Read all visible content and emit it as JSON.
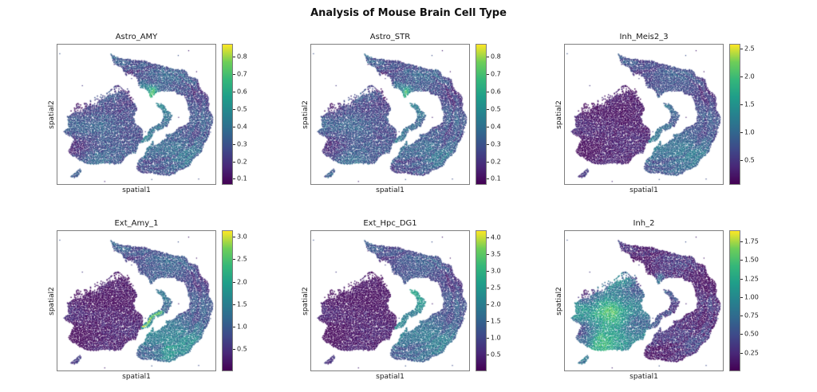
{
  "figure": {
    "title": "Analysis of Mouse Brain Cell Type"
  },
  "chart_data": {
    "type": "scatter",
    "subtype": "spatial-transcriptomics-feature-panels",
    "colormap": "viridis",
    "layout": {
      "rows": 2,
      "cols": 3,
      "grid_off": true,
      "colorbar_position": "right-of-each-panel",
      "shared_xlabel": "spatial1",
      "shared_ylabel": "spatial2"
    },
    "panels": [
      {
        "id": "astro-amy",
        "title": "Astro_AMY",
        "xlabel": "spatial1",
        "ylabel": "spatial2",
        "vmin": 0.07,
        "vmax": 0.87,
        "colorbar_ticks": [
          "0.8",
          "0.7",
          "0.6",
          "0.5",
          "0.4",
          "0.3",
          "0.2",
          "0.1"
        ],
        "high_regions": "moderate signal over cortex and striatum, bright green focus at inner cortical edge above hippocampus",
        "render": {
          "cortex": 0.3,
          "bottomBand": 0.36,
          "blob": 0.27,
          "hippo": 0.42,
          "dg": 0.45,
          "dgOuter": 0.42,
          "comma": 0.3,
          "mottle": 0.09,
          "blobMottle": 0.12,
          "speckle": 0.2,
          "spots": [
            {
              "u": 0.6,
              "v": 0.345,
              "r": 0.042,
              "amp": 0.5
            },
            {
              "u": 0.54,
              "v": 0.3,
              "r": 0.03,
              "amp": 0.18
            }
          ]
        }
      },
      {
        "id": "astro-str",
        "title": "Astro_STR",
        "xlabel": "spatial1",
        "ylabel": "spatial2",
        "vmin": 0.07,
        "vmax": 0.87,
        "colorbar_ticks": [
          "0.8",
          "0.7",
          "0.6",
          "0.5",
          "0.4",
          "0.3",
          "0.2",
          "0.1"
        ],
        "high_regions": "moderate signal over cortex and striatum, bright green focus at inner cortical edge above hippocampus",
        "render": {
          "cortex": 0.29,
          "bottomBand": 0.35,
          "blob": 0.27,
          "hippo": 0.4,
          "dg": 0.44,
          "dgOuter": 0.4,
          "comma": 0.3,
          "mottle": 0.09,
          "blobMottle": 0.12,
          "speckle": 0.2,
          "spots": [
            {
              "u": 0.6,
              "v": 0.345,
              "r": 0.04,
              "amp": 0.45
            },
            {
              "u": 0.54,
              "v": 0.3,
              "r": 0.03,
              "amp": 0.15
            }
          ]
        }
      },
      {
        "id": "inh-meis2-3",
        "title": "Inh_Meis2_3",
        "xlabel": "spatial1",
        "ylabel": "spatial2",
        "vmin": 0.08,
        "vmax": 2.57,
        "colorbar_ticks": [
          "2.5",
          "2.0",
          "1.5",
          "1.0",
          "0.5"
        ],
        "high_regions": "striatal mass very dark, blue cortical band with teal inner/bottom band",
        "render": {
          "cortex": 0.27,
          "bottomBand": 0.4,
          "blob": 0.07,
          "hippo": 0.32,
          "dg": 0.45,
          "dgOuter": 0.4,
          "comma": 0.16,
          "mottle": 0.08,
          "blobMottle": 0.05,
          "speckle": 0.15,
          "spots": []
        }
      },
      {
        "id": "ext-amy-1",
        "title": "Ext_Amy_1",
        "xlabel": "spatial1",
        "ylabel": "spatial2",
        "vmin": 0.02,
        "vmax": 3.13,
        "colorbar_ticks": [
          "3.0",
          "2.5",
          "2.0",
          "1.5",
          "1.0",
          "0.5"
        ],
        "high_regions": "bright yellow-green dentate gyrus streak, teal lower cortical band, dark striatum",
        "render": {
          "cortex": 0.3,
          "bottomBand": 0.46,
          "blob": 0.06,
          "hippo": 0.38,
          "dg": 0.9,
          "dgOuter": 0.52,
          "comma": 0.18,
          "mottle": 0.09,
          "blobMottle": 0.05,
          "speckle": 0.16,
          "spots": [
            {
              "u": 0.7,
              "v": 0.86,
              "r": 0.06,
              "amp": 0.18
            }
          ]
        }
      },
      {
        "id": "ext-hpc-dg1",
        "title": "Ext_Hpc_DG1",
        "xlabel": "spatial1",
        "ylabel": "spatial2",
        "vmin": 0.03,
        "vmax": 4.19,
        "colorbar_ticks": [
          "4.0",
          "3.5",
          "3.0",
          "2.5",
          "2.0",
          "1.5",
          "1.0",
          "0.5"
        ],
        "high_regions": "bright teal hippocampal CA/DG ribbons, blue cortical band, dark striatum",
        "render": {
          "cortex": 0.28,
          "bottomBand": 0.42,
          "blob": 0.05,
          "hippo": 0.58,
          "dg": 0.5,
          "dgOuter": 0.48,
          "comma": 0.15,
          "mottle": 0.08,
          "blobMottle": 0.05,
          "speckle": 0.15,
          "spots": []
        }
      },
      {
        "id": "inh-2",
        "title": "Inh_2",
        "xlabel": "spatial1",
        "ylabel": "spatial2",
        "vmin": 0.01,
        "vmax": 1.89,
        "colorbar_ticks": [
          "1.75",
          "1.50",
          "1.25",
          "1.00",
          "0.75",
          "0.50",
          "0.25"
        ],
        "high_regions": "mottled teal-green striatal mass, dark cortical band and hippocampus",
        "render": {
          "cortex": 0.13,
          "bottomBand": 0.16,
          "blob": 0.48,
          "hippo": 0.2,
          "dg": 0.3,
          "dgOuter": 0.26,
          "comma": 0.4,
          "mottle": 0.1,
          "blobMottle": 0.24,
          "speckle": 0.22,
          "spots": [
            {
              "u": 0.6,
              "v": 0.35,
              "r": 0.035,
              "amp": 0.28
            },
            {
              "u": 0.3,
              "v": 0.62,
              "r": 0.09,
              "amp": 0.18
            },
            {
              "u": 0.22,
              "v": 0.74,
              "r": 0.06,
              "amp": 0.2
            }
          ]
        }
      }
    ]
  }
}
